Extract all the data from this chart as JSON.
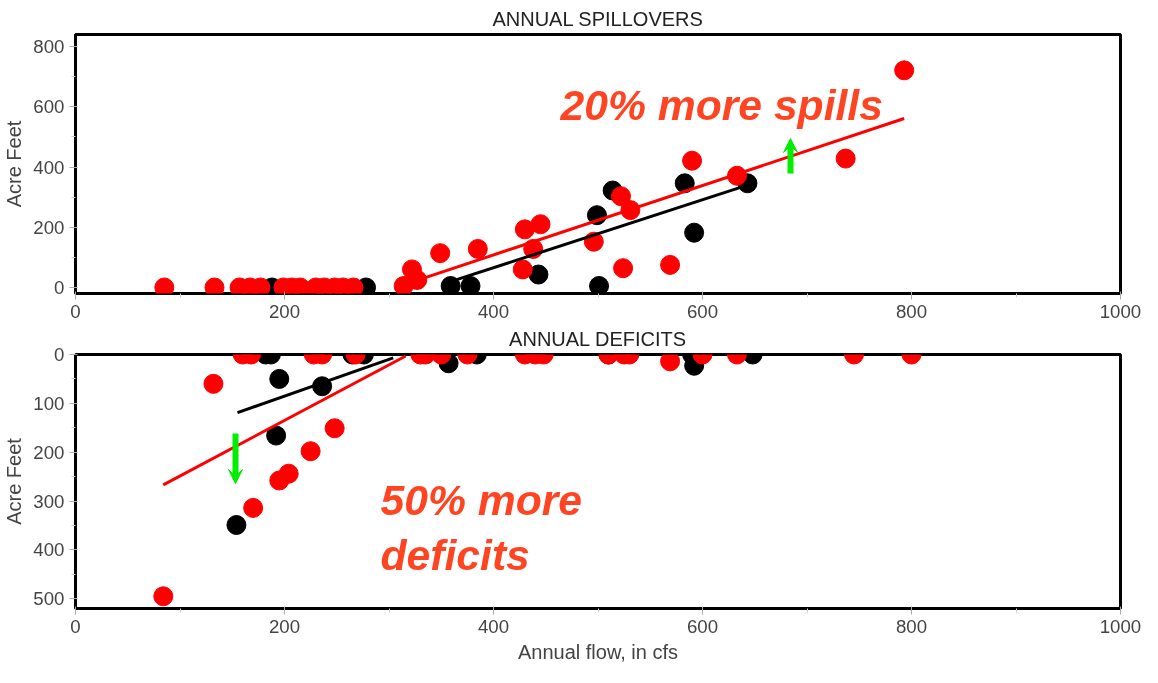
{
  "chart_data": [
    {
      "type": "scatter",
      "title": "ANNUAL SPILLOVERS",
      "ylabel": "Acre Feet",
      "xlim": [
        0,
        1000
      ],
      "ylim": [
        -20,
        840
      ],
      "xticks": [
        0,
        200,
        400,
        600,
        800,
        1000
      ],
      "yticks": [
        0,
        200,
        400,
        600,
        800
      ],
      "grid": false,
      "marker": "circle",
      "annotations": [
        "20% more spills"
      ],
      "series": [
        {
          "color": "#000000",
          "x": [
            188,
            278,
            359,
            378,
            443,
            499,
            501,
            514,
            583,
            592,
            643
          ],
          "values": [
            0,
            0,
            5,
            5,
            43,
            240,
            5,
            322,
            346,
            182,
            346
          ]
        },
        {
          "color": "#ff0000",
          "x": [
            85,
            133,
            157,
            167,
            177,
            199,
            207,
            215,
            230,
            238,
            248,
            256,
            266,
            314,
            322,
            327,
            349,
            385,
            428,
            430,
            438,
            445,
            496,
            522,
            524,
            531,
            569,
            590,
            633,
            737,
            793
          ],
          "values": [
            0,
            0,
            0,
            0,
            0,
            0,
            0,
            0,
            0,
            0,
            0,
            0,
            0,
            5,
            60,
            25,
            114,
            128,
            60,
            193,
            128,
            210,
            152,
            303,
            64,
            257,
            75,
            421,
            371,
            428,
            721
          ]
        },
        {
          "type": "line",
          "marker": "none",
          "color": "#000000",
          "x": [
            364,
            643
          ],
          "values": [
            25,
            340
          ]
        },
        {
          "type": "line",
          "marker": "none",
          "color": "#ff0000",
          "x": [
            334,
            793
          ],
          "values": [
            32,
            561
          ]
        }
      ]
    },
    {
      "type": "scatter",
      "title": "ANNUAL DEFICITS",
      "ylabel": "Acre Feet",
      "xlabel": "Annual flow, in cfs",
      "xlim": [
        0,
        1000
      ],
      "ylim": [
        520,
        0
      ],
      "xticks": [
        0,
        200,
        400,
        600,
        800,
        1000
      ],
      "yticks": [
        0,
        100,
        200,
        300,
        400,
        500
      ],
      "grid": false,
      "marker": "circle",
      "annotations": [
        "50% more deficits"
      ],
      "series": [
        {
          "color": "#000000",
          "x": [
            154,
            182,
            187,
            192,
            195,
            236,
            265,
            276,
            357,
            384,
            510,
            590,
            592,
            648
          ],
          "values": [
            349,
            0,
            0,
            166,
            50,
            65,
            0,
            0,
            18,
            0,
            0,
            0,
            23,
            0
          ]
        },
        {
          "color": "#ff0000",
          "x": [
            84,
            132,
            160,
            168,
            170,
            195,
            204,
            225,
            228,
            236,
            248,
            268,
            330,
            335,
            350,
            375,
            430,
            440,
            448,
            510,
            525,
            530,
            569,
            600,
            633,
            745,
            800
          ],
          "values": [
            495,
            60,
            0,
            0,
            314,
            258,
            244,
            198,
            0,
            0,
            151,
            0,
            0,
            0,
            0,
            0,
            0,
            0,
            0,
            0,
            0,
            0,
            14,
            0,
            0,
            0,
            0
          ]
        },
        {
          "type": "line",
          "marker": "none",
          "color": "#000000",
          "x": [
            155,
            304
          ],
          "values": [
            119,
            7
          ]
        },
        {
          "type": "line",
          "marker": "none",
          "color": "#ff0000",
          "x": [
            84,
            316
          ],
          "values": [
            267,
            3
          ]
        }
      ]
    }
  ]
}
